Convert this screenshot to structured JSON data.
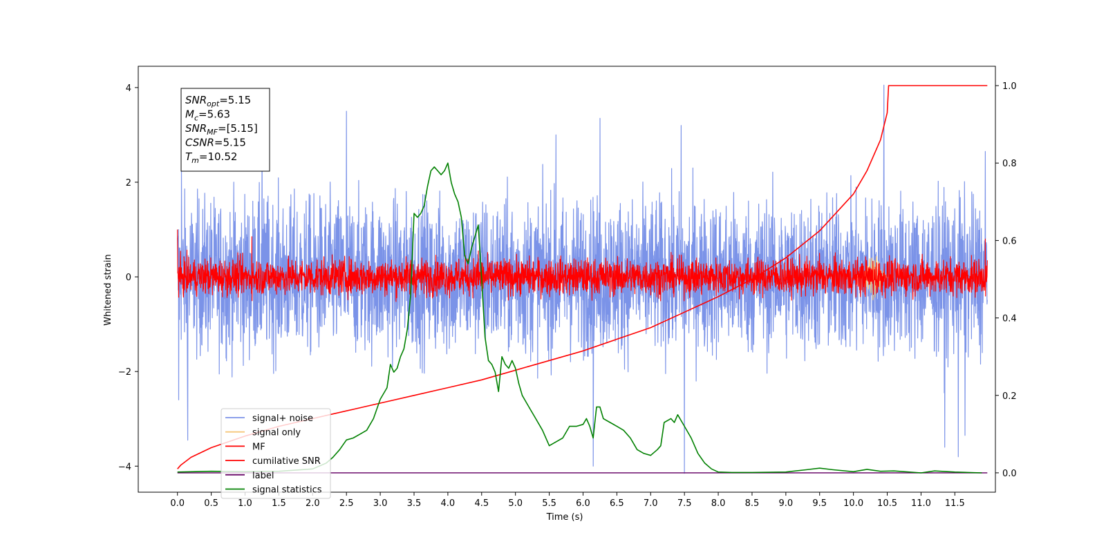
{
  "chart_data": {
    "type": "line",
    "xlabel": "Time (s)",
    "ylabel": "Whitened strain",
    "xlim": [
      -0.58,
      12.1
    ],
    "ylim": [
      -4.55,
      4.45
    ],
    "y2lim": [
      -0.05,
      1.05
    ],
    "x_ticks": [
      "0.0",
      "0.5",
      "1.0",
      "1.5",
      "2.0",
      "2.5",
      "3.0",
      "3.5",
      "4.0",
      "4.5",
      "5.0",
      "5.5",
      "6.0",
      "6.5",
      "7.0",
      "7.5",
      "8.0",
      "8.5",
      "9.0",
      "9.5",
      "10.0",
      "10.5",
      "11.0",
      "11.5"
    ],
    "y_ticks": [
      "4",
      "2",
      "0",
      "−2",
      "−4"
    ],
    "y2_ticks": [
      "1.0",
      "0.8",
      "0.6",
      "0.4",
      "0.2",
      "0.0"
    ],
    "annotation": [
      {
        "base": "SNR",
        "sub": "opt",
        "rest": "=5.15"
      },
      {
        "base": "M",
        "sub": "c",
        "rest": "=5.63"
      },
      {
        "base": "SNR",
        "sub": "MF",
        "rest": "=[5.15]"
      },
      {
        "base": "CSNR",
        "sub": "",
        "rest": "=5.15"
      },
      {
        "base": "T",
        "sub": "m",
        "rest": "=10.52"
      }
    ],
    "series": [
      {
        "name": "signal+ noise",
        "color": "#7b93e8",
        "axis": "left",
        "kind": "noise",
        "t_range": [
          0,
          11.98
        ],
        "mean": 0.0,
        "core_amplitude": 1.5,
        "peaks": [
          [
            0.02,
            -2.6
          ],
          [
            0.06,
            2.3
          ],
          [
            0.15,
            -3.45
          ],
          [
            1.25,
            3.2
          ],
          [
            2.5,
            3.5
          ],
          [
            5.6,
            3.0
          ],
          [
            6.15,
            -4.0
          ],
          [
            6.25,
            3.35
          ],
          [
            7.45,
            3.2
          ],
          [
            7.5,
            -4.15
          ],
          [
            10.45,
            4.05
          ],
          [
            11.35,
            -3.6
          ],
          [
            11.55,
            -3.8
          ],
          [
            11.65,
            -3.35
          ],
          [
            11.95,
            2.65
          ]
        ]
      },
      {
        "name": "signal only",
        "color": "#f6c77a",
        "axis": "left",
        "kind": "burst",
        "t_center": 10.3,
        "amplitude": 0.5
      },
      {
        "name": "MF",
        "color": "#ff0000",
        "axis": "left",
        "kind": "noise",
        "t_range": [
          0,
          11.98
        ],
        "mean": 0.0,
        "core_amplitude": 0.35,
        "peaks": [
          [
            0.0,
            1.0
          ],
          [
            1.1,
            0.85
          ],
          [
            3.45,
            0.35
          ],
          [
            4.45,
            0.55
          ],
          [
            9.5,
            0.5
          ],
          [
            11.95,
            0.8
          ]
        ]
      },
      {
        "name": "cumilative SNR",
        "color": "#ff0000",
        "axis": "right",
        "x": [
          0.0,
          0.05,
          0.2,
          0.5,
          1.0,
          1.5,
          2.0,
          2.5,
          3.0,
          3.5,
          4.0,
          4.5,
          5.0,
          5.5,
          6.0,
          6.5,
          7.0,
          7.5,
          8.0,
          8.5,
          9.0,
          9.5,
          10.0,
          10.2,
          10.4,
          10.5,
          10.52,
          11.98
        ],
        "y": [
          0.01,
          0.02,
          0.04,
          0.065,
          0.095,
          0.12,
          0.14,
          0.16,
          0.18,
          0.2,
          0.22,
          0.24,
          0.265,
          0.29,
          0.315,
          0.345,
          0.375,
          0.415,
          0.455,
          0.5,
          0.555,
          0.625,
          0.72,
          0.78,
          0.86,
          0.93,
          1.0,
          1.0
        ]
      },
      {
        "name": "label",
        "color": "#6a0a6a",
        "axis": "right",
        "x": [
          0.0,
          11.98
        ],
        "y": [
          0.0,
          0.0
        ]
      },
      {
        "name": "signal statistics",
        "color": "#008000",
        "axis": "right",
        "x": [
          0.0,
          0.5,
          1.0,
          1.5,
          2.0,
          2.2,
          2.3,
          2.4,
          2.5,
          2.6,
          2.7,
          2.8,
          2.9,
          3.0,
          3.05,
          3.1,
          3.15,
          3.2,
          3.25,
          3.3,
          3.35,
          3.4,
          3.45,
          3.5,
          3.55,
          3.6,
          3.65,
          3.7,
          3.75,
          3.8,
          3.85,
          3.9,
          3.95,
          4.0,
          4.05,
          4.1,
          4.15,
          4.2,
          4.25,
          4.3,
          4.35,
          4.4,
          4.45,
          4.5,
          4.55,
          4.6,
          4.65,
          4.7,
          4.75,
          4.8,
          4.85,
          4.9,
          4.95,
          5.0,
          5.05,
          5.1,
          5.2,
          5.3,
          5.4,
          5.5,
          5.6,
          5.7,
          5.8,
          5.9,
          6.0,
          6.05,
          6.1,
          6.15,
          6.2,
          6.25,
          6.3,
          6.4,
          6.5,
          6.6,
          6.7,
          6.8,
          6.9,
          7.0,
          7.1,
          7.15,
          7.2,
          7.3,
          7.35,
          7.4,
          7.5,
          7.6,
          7.7,
          7.8,
          7.9,
          8.0,
          8.2,
          8.5,
          9.0,
          9.3,
          9.5,
          9.7,
          10.0,
          10.2,
          10.4,
          10.6,
          11.0,
          11.2,
          11.5,
          11.9
        ],
        "y": [
          0.002,
          0.004,
          0.003,
          0.004,
          0.01,
          0.025,
          0.04,
          0.06,
          0.085,
          0.09,
          0.1,
          0.11,
          0.14,
          0.19,
          0.205,
          0.22,
          0.28,
          0.26,
          0.27,
          0.3,
          0.32,
          0.37,
          0.46,
          0.67,
          0.66,
          0.67,
          0.69,
          0.74,
          0.78,
          0.79,
          0.78,
          0.77,
          0.78,
          0.8,
          0.75,
          0.72,
          0.7,
          0.66,
          0.56,
          0.54,
          0.58,
          0.61,
          0.64,
          0.5,
          0.35,
          0.29,
          0.28,
          0.26,
          0.21,
          0.3,
          0.28,
          0.27,
          0.29,
          0.27,
          0.23,
          0.2,
          0.17,
          0.14,
          0.11,
          0.07,
          0.08,
          0.09,
          0.12,
          0.12,
          0.125,
          0.14,
          0.12,
          0.09,
          0.17,
          0.17,
          0.14,
          0.13,
          0.12,
          0.11,
          0.09,
          0.06,
          0.05,
          0.045,
          0.06,
          0.07,
          0.13,
          0.14,
          0.13,
          0.15,
          0.12,
          0.09,
          0.05,
          0.025,
          0.01,
          0.002,
          0.001,
          0.001,
          0.002,
          0.008,
          0.012,
          0.008,
          0.003,
          0.009,
          0.004,
          0.005,
          0.0,
          0.005,
          0.002,
          0.0
        ]
      }
    ],
    "legend": {
      "placement": "lower-left",
      "labels": [
        "signal+ noise",
        "signal only",
        "MF",
        "cumilative SNR",
        "label",
        "signal statistics"
      ]
    }
  }
}
